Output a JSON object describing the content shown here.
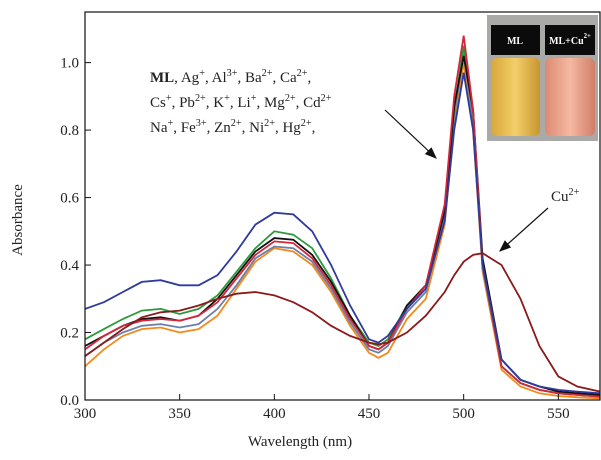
{
  "chart_data": {
    "type": "line",
    "xlabel": "Wavelength (nm)",
    "ylabel": "Absorbance",
    "xlim": [
      300,
      572
    ],
    "ylim": [
      0,
      1.15
    ],
    "xticks": [
      300,
      350,
      400,
      450,
      500,
      550
    ],
    "yticks": [
      {
        "value": 0,
        "label": "0.0"
      },
      0.2,
      0.4,
      0.6,
      0.8,
      {
        "value": 1,
        "label": "1.0"
      }
    ],
    "x": [
      300,
      310,
      320,
      330,
      340,
      350,
      360,
      370,
      380,
      390,
      400,
      410,
      420,
      430,
      440,
      450,
      455,
      460,
      470,
      480,
      490,
      495,
      500,
      505,
      510,
      520,
      530,
      540,
      550,
      560,
      572
    ],
    "series": [
      {
        "color": "#f28a1c",
        "values": [
          0.1,
          0.15,
          0.19,
          0.21,
          0.215,
          0.2,
          0.21,
          0.25,
          0.33,
          0.41,
          0.45,
          0.44,
          0.4,
          0.32,
          0.22,
          0.14,
          0.125,
          0.14,
          0.24,
          0.3,
          0.52,
          0.82,
          1.0,
          0.8,
          0.38,
          0.09,
          0.04,
          0.02,
          0.012,
          0.008,
          0.005
        ]
      },
      {
        "color": "#6b7fa8",
        "values": [
          0.13,
          0.17,
          0.2,
          0.22,
          0.225,
          0.215,
          0.225,
          0.27,
          0.34,
          0.42,
          0.455,
          0.45,
          0.41,
          0.33,
          0.23,
          0.15,
          0.14,
          0.16,
          0.26,
          0.32,
          0.54,
          0.84,
          1.03,
          0.83,
          0.39,
          0.1,
          0.05,
          0.03,
          0.02,
          0.015,
          0.01
        ]
      },
      {
        "color": "#2a9a3a",
        "values": [
          0.18,
          0.21,
          0.24,
          0.265,
          0.27,
          0.255,
          0.27,
          0.31,
          0.38,
          0.45,
          0.5,
          0.49,
          0.45,
          0.36,
          0.25,
          0.17,
          0.16,
          0.18,
          0.28,
          0.34,
          0.56,
          0.86,
          1.05,
          0.85,
          0.4,
          0.1,
          0.05,
          0.03,
          0.02,
          0.015,
          0.01
        ]
      },
      {
        "color": "#111111",
        "values": [
          0.16,
          0.19,
          0.22,
          0.24,
          0.245,
          0.235,
          0.25,
          0.3,
          0.37,
          0.44,
          0.48,
          0.475,
          0.43,
          0.35,
          0.25,
          0.16,
          0.15,
          0.17,
          0.28,
          0.34,
          0.56,
          0.87,
          1.02,
          0.86,
          0.42,
          0.12,
          0.06,
          0.04,
          0.025,
          0.02,
          0.015
        ]
      },
      {
        "color": "#d6263c",
        "values": [
          0.15,
          0.19,
          0.22,
          0.235,
          0.24,
          0.235,
          0.25,
          0.29,
          0.36,
          0.43,
          0.47,
          0.465,
          0.42,
          0.34,
          0.24,
          0.16,
          0.15,
          0.17,
          0.27,
          0.34,
          0.58,
          0.9,
          1.08,
          0.86,
          0.4,
          0.1,
          0.05,
          0.03,
          0.02,
          0.015,
          0.01
        ]
      },
      {
        "color": "#2e3a9c",
        "values": [
          0.27,
          0.29,
          0.32,
          0.35,
          0.355,
          0.34,
          0.34,
          0.37,
          0.44,
          0.52,
          0.555,
          0.55,
          0.5,
          0.4,
          0.28,
          0.18,
          0.17,
          0.19,
          0.27,
          0.33,
          0.53,
          0.8,
          0.97,
          0.8,
          0.4,
          0.12,
          0.06,
          0.04,
          0.03,
          0.025,
          0.02
        ]
      },
      {
        "color": "#8b1a1a",
        "values": [
          0.13,
          0.17,
          0.21,
          0.245,
          0.26,
          0.265,
          0.28,
          0.3,
          0.315,
          0.32,
          0.31,
          0.29,
          0.26,
          0.22,
          0.19,
          0.17,
          0.165,
          0.17,
          0.2,
          0.25,
          0.32,
          0.37,
          0.41,
          0.43,
          0.435,
          0.4,
          0.3,
          0.16,
          0.07,
          0.04,
          0.025
        ]
      }
    ],
    "annotation_lines": [
      [
        {
          "text": "ML",
          "bold": true
        },
        {
          "text": ", Ag"
        },
        {
          "sup": "+"
        },
        {
          "text": ", Al"
        },
        {
          "sup": "3+"
        },
        {
          "text": ", Ba"
        },
        {
          "sup": "2+"
        },
        {
          "text": ", Ca"
        },
        {
          "sup": "2+"
        },
        {
          "text": ","
        }
      ],
      [
        {
          "text": "Cs"
        },
        {
          "sup": "+"
        },
        {
          "text": ", Pb"
        },
        {
          "sup": "2+"
        },
        {
          "text": ", K"
        },
        {
          "sup": "+"
        },
        {
          "text": ", Li"
        },
        {
          "sup": "+"
        },
        {
          "text": ", Mg"
        },
        {
          "sup": "2+"
        },
        {
          "text": ", Cd"
        },
        {
          "sup": "2+"
        }
      ],
      [
        {
          "text": "Na"
        },
        {
          "sup": "+"
        },
        {
          "text": ", Fe"
        },
        {
          "sup": "3+"
        },
        {
          "text": ", Zn"
        },
        {
          "sup": "2+"
        },
        {
          "text": ", Ni"
        },
        {
          "sup": "2+"
        },
        {
          "text": ", Hg"
        },
        {
          "sup": "2+"
        },
        {
          "text": ","
        }
      ]
    ],
    "cu_label": [
      {
        "text": "Cu"
      },
      {
        "sup": "2+"
      }
    ],
    "inset_labels": [
      [
        {
          "text": "ML"
        }
      ],
      [
        {
          "text": "ML+Cu"
        },
        {
          "sup": "2+"
        }
      ]
    ]
  }
}
